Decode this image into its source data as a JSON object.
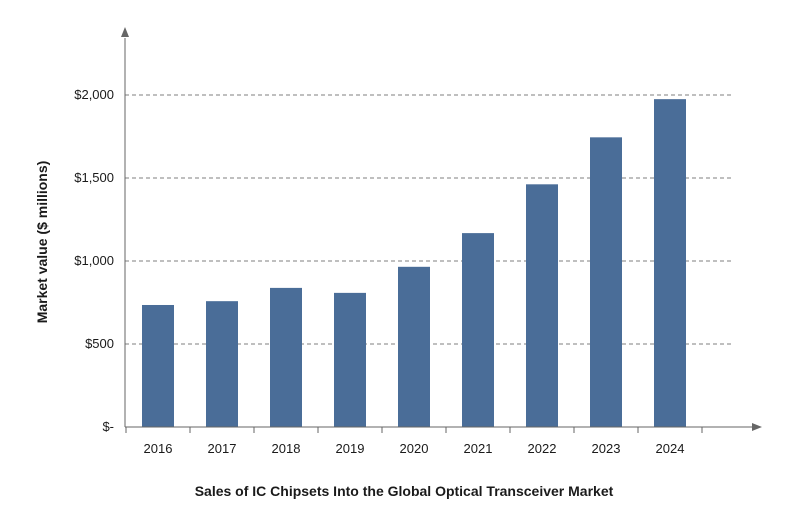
{
  "chart_data": {
    "type": "bar",
    "title": "Sales of IC Chipsets Into the Global Optical Transceiver Market",
    "xlabel": "",
    "ylabel": "Market value ($ millions)",
    "categories": [
      "2016",
      "2017",
      "2018",
      "2019",
      "2020",
      "2021",
      "2022",
      "2023",
      "2024"
    ],
    "values": [
      735,
      758,
      838,
      808,
      965,
      1168,
      1462,
      1745,
      1975
    ],
    "ylim": [
      0,
      2000
    ],
    "yticks": [
      0,
      500,
      1000,
      1500,
      2000
    ],
    "ytick_labels": [
      "$-",
      "$500",
      "$1,000",
      "$1,500",
      "$2,000"
    ],
    "grid": "horizontal dashed",
    "legend": "none",
    "bar_color": "#4a6d98",
    "grid_color": "#555555",
    "axis_color": "#666666"
  }
}
